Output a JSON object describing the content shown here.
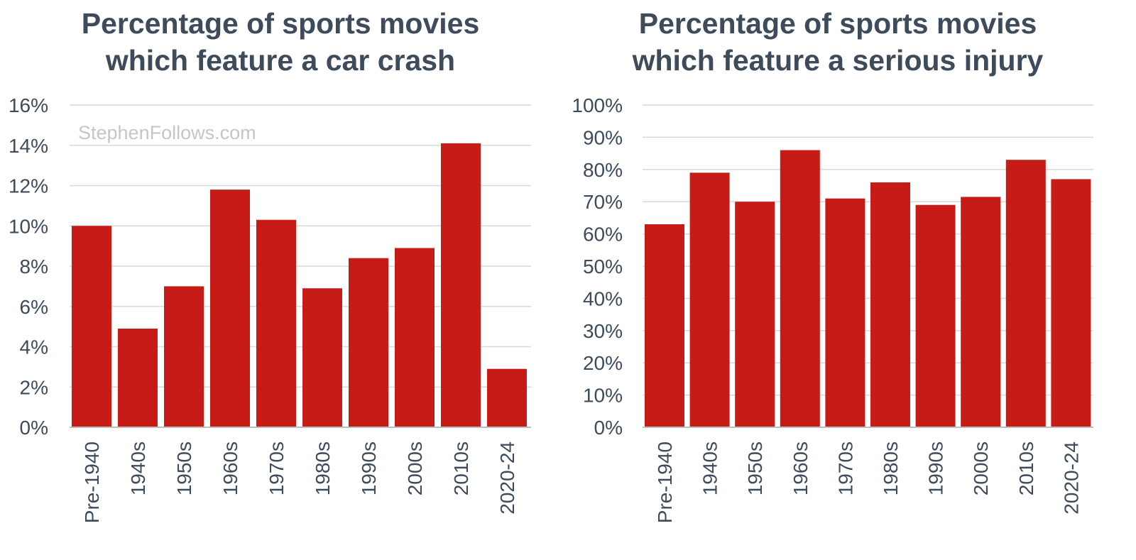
{
  "watermark": "StephenFollows.com",
  "chart_data": [
    {
      "type": "bar",
      "title": [
        "Percentage of sports movies",
        "which feature a car crash"
      ],
      "categories": [
        "Pre-1940",
        "1940s",
        "1950s",
        "1960s",
        "1970s",
        "1980s",
        "1990s",
        "2000s",
        "2010s",
        "2020-24"
      ],
      "values": [
        10.0,
        4.9,
        7.0,
        11.8,
        10.3,
        6.9,
        8.4,
        8.9,
        14.1,
        2.9
      ],
      "ylim": [
        0,
        16
      ],
      "yticks": [
        0,
        2,
        4,
        6,
        8,
        10,
        12,
        14,
        16
      ],
      "ytick_labels": [
        "0%",
        "2%",
        "4%",
        "6%",
        "8%",
        "10%",
        "12%",
        "14%",
        "16%"
      ],
      "xlabel": "",
      "ylabel": "",
      "color": "#c61b17",
      "grid": true
    },
    {
      "type": "bar",
      "title": [
        "Percentage of sports movies",
        "which feature a serious injury"
      ],
      "categories": [
        "Pre-1940",
        "1940s",
        "1950s",
        "1960s",
        "1970s",
        "1980s",
        "1990s",
        "2000s",
        "2010s",
        "2020-24"
      ],
      "values": [
        63,
        79,
        70,
        86,
        71,
        76,
        69,
        71.5,
        83,
        77
      ],
      "ylim": [
        0,
        100
      ],
      "yticks": [
        0,
        10,
        20,
        30,
        40,
        50,
        60,
        70,
        80,
        90,
        100
      ],
      "ytick_labels": [
        "0%",
        "10%",
        "20%",
        "30%",
        "40%",
        "50%",
        "60%",
        "70%",
        "80%",
        "90%",
        "100%"
      ],
      "xlabel": "",
      "ylabel": "",
      "color": "#c61b17",
      "grid": true
    }
  ]
}
